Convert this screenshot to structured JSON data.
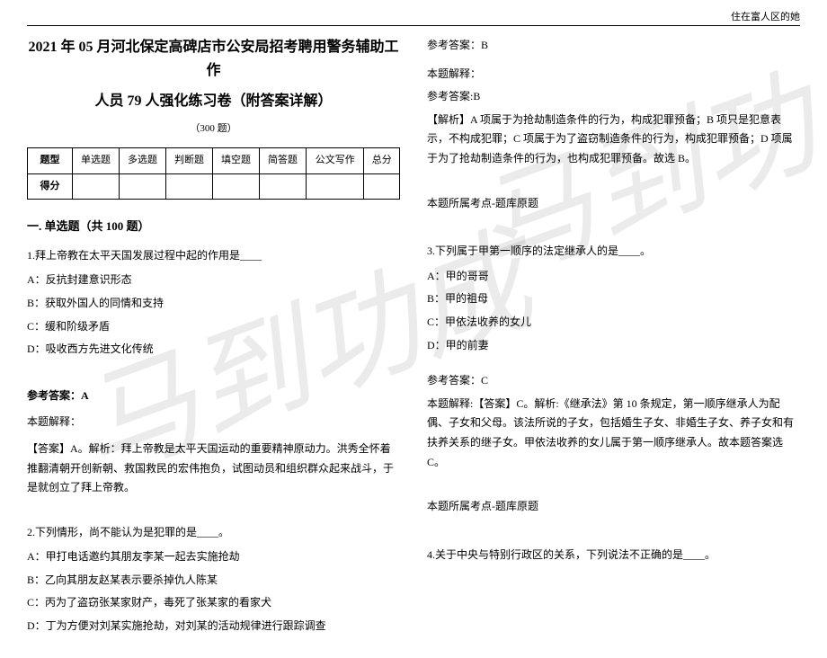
{
  "header": {
    "right_text": "住在富人区的她"
  },
  "title_line1": "2021 年 05 月河北保定高碑店市公安局招考聘用警务辅助工作",
  "title_line2": "人员 79 人强化练习卷（附答案详解）",
  "count_text": "（300 题）",
  "table": {
    "row1": [
      "题型",
      "单选题",
      "多选题",
      "判断题",
      "填空题",
      "简答题",
      "公文写作",
      "总分"
    ],
    "row2_label": "得分"
  },
  "section_title": "一. 单选题（共 100 题）",
  "q1": {
    "text": "1.拜上帝教在太平天国发展过程中起的作用是____",
    "optA": "A：反抗封建意识形态",
    "optB": "B：获取外国人的同情和支持",
    "optC": "C：缓和阶级矛盾",
    "optD": "D：吸收西方先进文化传统",
    "ans_label": "参考答案：A",
    "exp_label": "本题解释：",
    "explanation": "【答案】A。解析：拜上帝教是太平天国运动的重要精神原动力。洪秀全怀着推翻清朝开创新朝、救国救民的宏伟抱负，试图动员和组织群众起来战斗，于是就创立了拜上帝教。"
  },
  "q2": {
    "text": "2.下列情形，尚不能认为是犯罪的是____。",
    "optA": "A：甲打电话邀约其朋友李某一起去实施抢劫",
    "optB": "B：乙向其朋友赵某表示要杀掉仇人陈某",
    "optC": "C：丙为了盗窃张某家财产，毒死了张某家的看家犬",
    "optD": "D：丁为方便对刘某实施抢劫，对刘某的活动规律进行跟踪调查"
  },
  "right_col": {
    "ans_b": "参考答案：B",
    "exp_label": "本题解释：",
    "ans_b2": "参考答案:B",
    "q2_explanation": "【解析】A 项属于为抢劫制造条件的行为，构成犯罪预备；B 项只是犯意表示，不构成犯罪；C 项属于为了盗窃制造条件的行为，构成犯罪预备；D 项属于为了抢劫制造条件的行为，也构成犯罪预备。故选 B。",
    "topic_label": "本题所属考点-题库原题",
    "q3": {
      "text": "3.下列属于甲第一顺序的法定继承人的是____。",
      "optA": "A：甲的哥哥",
      "optB": "B：甲的祖母",
      "optC": "C：甲依法收养的女儿",
      "optD": "D：甲的前妻",
      "ans": "参考答案：C",
      "explanation": "本题解释:【答案】C。解析:《继承法》第 10 条规定，第一顺序继承人为配偶、子女和父母。该法所说的子女，包括婚生子女、非婚生子女、养子女和有扶养关系的继子女。甲依法收养的女儿属于第一顺序继承人。故本题答案选 C。"
    },
    "q4_text": "4.关于中央与特别行政区的关系，下列说法不正确的是____。"
  },
  "watermark": "马到功成"
}
